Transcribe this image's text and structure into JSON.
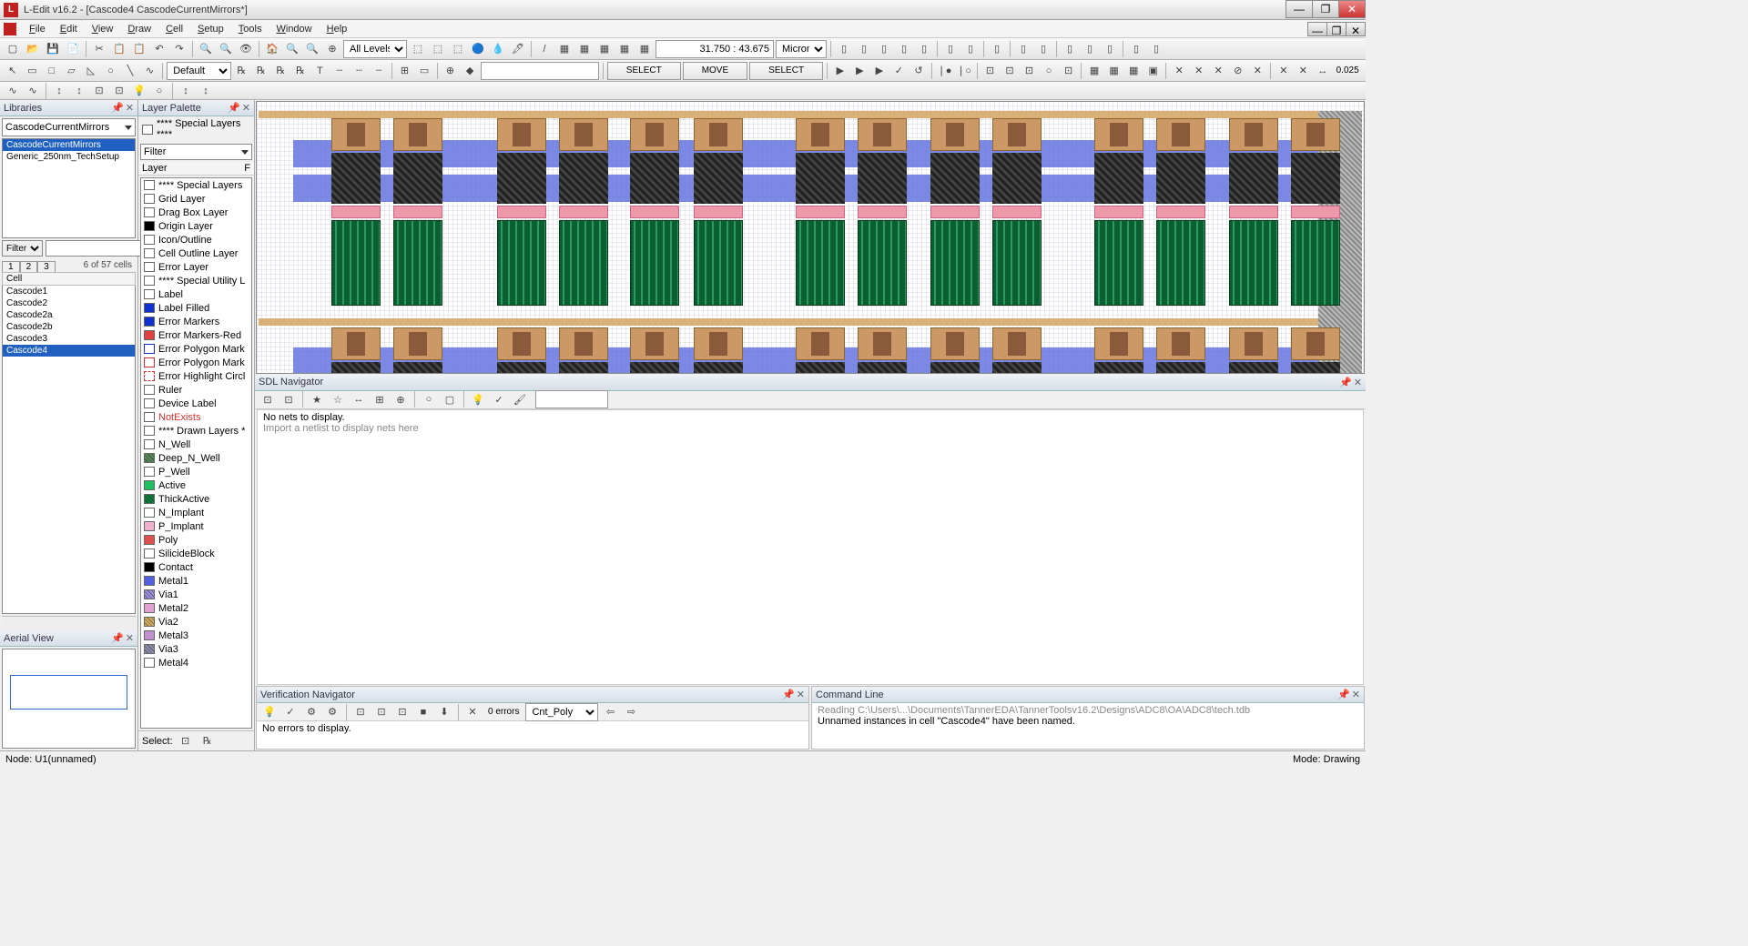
{
  "app": {
    "icon_letter": "L",
    "title": "L-Edit v16.2 - [Cascode4     CascodeCurrentMirrors*]"
  },
  "window_buttons": {
    "min": "—",
    "max": "❐",
    "close": "✕"
  },
  "menu": [
    "File",
    "Edit",
    "View",
    "Draw",
    "Cell",
    "Setup",
    "Tools",
    "Window",
    "Help"
  ],
  "toolbar1": {
    "levels": "All Levels",
    "coord": "31.750 : 43.675",
    "units": "Microns",
    "icons_l": [
      "▢",
      "📂",
      "💾",
      "📄",
      "|",
      "✂",
      "📋",
      "📋",
      "↶",
      "↷",
      "|",
      "🔍",
      "🔍",
      "👁",
      "|",
      "🏠",
      "🔍",
      "🔍",
      "⊕"
    ],
    "icons_m": [
      "⬚",
      "⬚",
      "⬚",
      "🔵",
      "💧",
      "🖊",
      "|",
      "/",
      "▦",
      "▦",
      "▦",
      "▦",
      "▦"
    ],
    "icons_r": [
      "▯",
      "▯",
      "▯",
      "▯",
      "▯",
      "|",
      "▯",
      "▯",
      "|",
      "▯",
      "|",
      "▯",
      "▯",
      "|",
      "▯",
      "▯",
      "▯",
      "|",
      "▯",
      "▯"
    ]
  },
  "toolbar2": {
    "layer_sel": "Default",
    "btns_l": [
      "▭",
      "□",
      "▱",
      "◺",
      "○",
      "╲",
      "∿",
      "|"
    ],
    "btns_m": [
      "℞",
      "℞",
      "℞",
      "℞",
      "T",
      "┄",
      "┄",
      "┄",
      "|",
      "⊞",
      "▭",
      "|",
      "⊕",
      "◆"
    ],
    "action1": "SELECT",
    "action2": "MOVE",
    "action3": "SELECT",
    "drc_icons": [
      "▶",
      "▶",
      "▶",
      "✓",
      "↺",
      "|",
      "❘●",
      "❘○",
      "|",
      "⊡",
      "⊡",
      "⊡",
      "○",
      "⊡",
      "|",
      "▦",
      "▦",
      "▦",
      "▣",
      "|",
      "✕",
      "✕",
      "✕",
      "⊘",
      "✕",
      "|",
      "✕",
      "✕",
      "↔"
    ],
    "num": "0.025"
  },
  "toolbar3": {
    "icons": [
      "∿",
      "∿",
      "|",
      "↕",
      "↕",
      "⊡",
      "⊡",
      "💡",
      "○",
      "|",
      "↕",
      "↕"
    ]
  },
  "libraries": {
    "title": "Libraries",
    "dropdown": "CascodeCurrentMirrors",
    "items": [
      {
        "name": "CascodeCurrentMirrors",
        "sel": true
      },
      {
        "name": "Generic_250nm_TechSetup",
        "sel": false
      }
    ],
    "filter_label": "Filter",
    "tabs": [
      "1",
      "2",
      "3"
    ],
    "cell_count": "6 of 57 cells",
    "cell_header": "Cell",
    "cells": [
      {
        "name": "Cascode1",
        "sel": false
      },
      {
        "name": "Cascode2",
        "sel": false
      },
      {
        "name": "Cascode2a",
        "sel": false
      },
      {
        "name": "Cascode2b",
        "sel": false
      },
      {
        "name": "Cascode3",
        "sel": false
      },
      {
        "name": "Cascode4",
        "sel": true
      }
    ]
  },
  "aerial": {
    "title": "Aerial View"
  },
  "layer_palette": {
    "title": "Layer Palette",
    "special_label": "**** Special Layers ****",
    "filter": "Filter",
    "header": "Layer",
    "header_r": "F",
    "select_label": "Select:",
    "layers": [
      {
        "name": "**** Special Layers",
        "c": "#ffffff"
      },
      {
        "name": "Grid Layer",
        "c": "#ffffff"
      },
      {
        "name": "Drag Box Layer",
        "c": "#ffffff"
      },
      {
        "name": "Origin Layer",
        "c": "#000000"
      },
      {
        "name": "Icon/Outline",
        "c": "#ffffff"
      },
      {
        "name": "Cell Outline Layer",
        "c": "#ffffff"
      },
      {
        "name": "Error Layer",
        "c": "#ffffff"
      },
      {
        "name": "**** Special Utility L",
        "c": "#ffffff"
      },
      {
        "name": "Label",
        "c": "#ffffff"
      },
      {
        "name": "Label Filled",
        "c": "#1030d0"
      },
      {
        "name": "Error Markers",
        "c": "#1030d0"
      },
      {
        "name": "Error Markers-Red",
        "c": "#e04040"
      },
      {
        "name": "Error Polygon Mark",
        "c": "#ffffff",
        "bd": "#1030d0"
      },
      {
        "name": "Error Polygon Mark",
        "c": "#ffffff",
        "bd": "#d03030"
      },
      {
        "name": "Error Highlight Circl",
        "c": "#ffffff",
        "bd": "#d03030",
        "dash": true
      },
      {
        "name": "Ruler",
        "c": "#ffffff"
      },
      {
        "name": "Device Label",
        "c": "#ffffff"
      },
      {
        "name": "NotExists",
        "c": "#ffffff",
        "txt": "#d03030"
      },
      {
        "name": "**** Drawn Layers *",
        "c": "#ffffff"
      },
      {
        "name": "N_Well",
        "c": "#ffffff"
      },
      {
        "name": "Deep_N_Well",
        "c": "#5a8a5a",
        "patt": true
      },
      {
        "name": "P_Well",
        "c": "#ffffff"
      },
      {
        "name": "Active",
        "c": "#20c060"
      },
      {
        "name": "ThickActive",
        "c": "#108040",
        "patt": true
      },
      {
        "name": "N_Implant",
        "c": "#ffffff"
      },
      {
        "name": "P_Implant",
        "c": "#f0b0d0"
      },
      {
        "name": "Poly",
        "c": "#e05050"
      },
      {
        "name": "SilicideBlock",
        "c": "#ffffff"
      },
      {
        "name": "Contact",
        "c": "#000000"
      },
      {
        "name": "Metal1",
        "c": "#5060e0"
      },
      {
        "name": "Via1",
        "c": "#a090e0",
        "patt": true
      },
      {
        "name": "Metal2",
        "c": "#e0a0d0"
      },
      {
        "name": "Via2",
        "c": "#d0b060",
        "patt": true
      },
      {
        "name": "Metal3",
        "c": "#c090d0"
      },
      {
        "name": "Via3",
        "c": "#9090b0",
        "patt": true
      },
      {
        "name": "Metal4",
        "c": "#ffffff"
      }
    ]
  },
  "canvas": {
    "device_x": [
      82,
      150,
      264,
      332,
      410,
      480,
      592,
      660,
      740,
      808,
      920,
      988,
      1068,
      1136
    ],
    "stripe_x": [
      44,
      228,
      372,
      556,
      704,
      884,
      1032
    ]
  },
  "sdl": {
    "title": "SDL Navigator",
    "msg1": "No nets to display.",
    "msg2": "Import a netlist to display nets here",
    "icons": [
      "⊡",
      "⊡",
      "|",
      "★",
      "☆",
      "↔",
      "⊞",
      "⊕",
      "|",
      "○",
      "▢",
      "|",
      "💡",
      "✓",
      "🖌"
    ]
  },
  "verification": {
    "title": "Verification Navigator",
    "errors": "0 errors",
    "rule": "Cnt_Poly",
    "msg": "No errors to display.",
    "icons": [
      "💡",
      "✓",
      "⚙",
      "⚙",
      "|",
      "⊡",
      "⊡",
      "⊡",
      "■",
      "⬇",
      "|",
      "✕"
    ]
  },
  "commandline": {
    "title": "Command Line",
    "msg1": "Reading C:\\Users\\...\\Documents\\TannerEDA\\TannerToolsv16.2\\Designs\\ADC8\\OA\\ADC8\\tech.tdb",
    "msg2": "Unnamed instances in cell \"Cascode4\" have been named."
  },
  "status": {
    "left": "Node: U1(unnamed)",
    "right": "Mode: Drawing"
  }
}
